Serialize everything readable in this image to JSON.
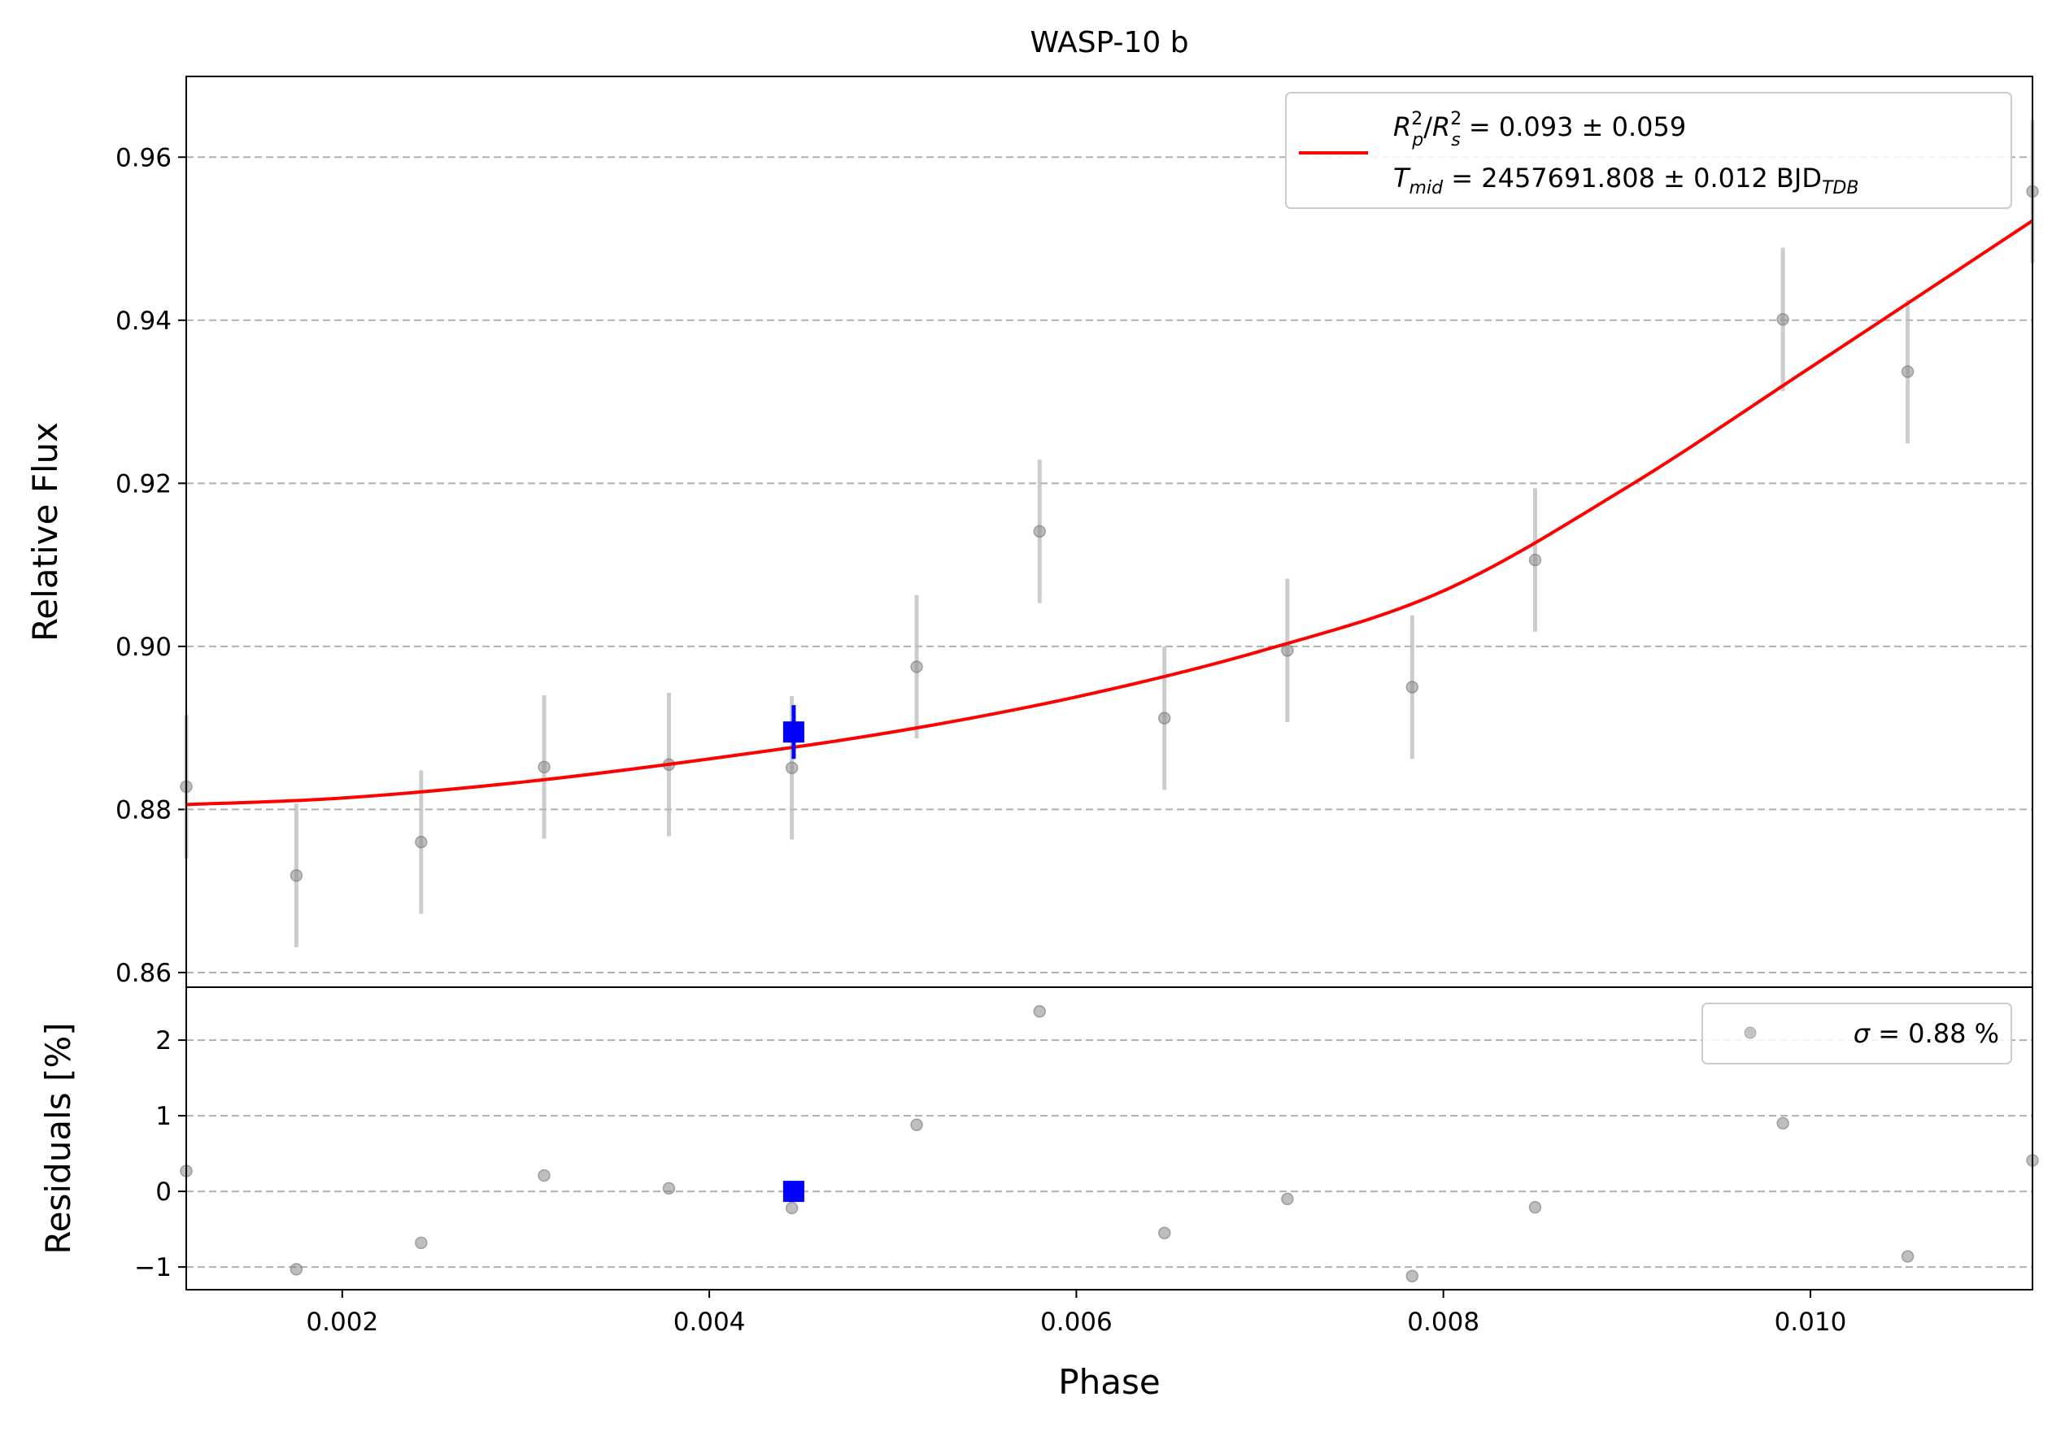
{
  "chart_data": [
    {
      "type": "scatter",
      "title": "WASP-10 b",
      "xlabel": "",
      "ylabel": "Relative Flux",
      "xlim": [
        0.00115,
        0.01121
      ],
      "ylim": [
        0.8582,
        0.9699
      ],
      "grid": "y-dashed",
      "yticks": [
        0.86,
        0.88,
        0.9,
        0.92,
        0.94,
        0.96
      ],
      "ytick_labels": [
        "0.86",
        "0.88",
        "0.90",
        "0.92",
        "0.94",
        "0.96"
      ],
      "series": [
        {
          "kind": "points-with-errorbars",
          "color": "#888888",
          "x": [
            0.00115,
            0.00175,
            0.00243,
            0.0031,
            0.00378,
            0.00445,
            0.00513,
            0.0058,
            0.00648,
            0.00715,
            0.00783,
            0.0085,
            0.00985,
            0.01053,
            0.01121
          ],
          "y": [
            0.8828,
            0.8719,
            0.876,
            0.8852,
            0.8855,
            0.8851,
            0.8975,
            0.9141,
            0.8912,
            0.8995,
            0.895,
            0.9106,
            0.9401,
            0.9337,
            0.9558
          ],
          "yerr": [
            0.0088,
            0.0088,
            0.0088,
            0.0088,
            0.0088,
            0.0088,
            0.0088,
            0.0088,
            0.0088,
            0.0088,
            0.0088,
            0.0088,
            0.0088,
            0.0088,
            0.0088
          ]
        },
        {
          "kind": "model-line",
          "color": "#ff0000",
          "legend": {
            "line1_a": "R",
            "line1_a_sup": "2",
            "line1_a_sub": "p",
            "line1_b": "R",
            "line1_b_sup": "2",
            "line1_b_sub": "s",
            "line1_value": " = 0.093 ± 0.059",
            "line2_a": "T",
            "line2_a_sub": "mid",
            "line2_value": " = 2457691.808 ± 0.012 BJD",
            "line2_sub": "TDB"
          },
          "x": [
            0.00115,
            0.002,
            0.003,
            0.004,
            0.005,
            0.006,
            0.007,
            0.008,
            0.009,
            0.01,
            0.01121
          ],
          "y": [
            0.8806,
            0.8814,
            0.8834,
            0.8862,
            0.8895,
            0.8938,
            0.8994,
            0.9068,
            0.9195,
            0.9342,
            0.9522
          ]
        },
        {
          "kind": "binned-point",
          "color": "#0000ff",
          "x": [
            0.00446
          ],
          "y": [
            0.8895
          ],
          "yerr": [
            0.0033
          ]
        }
      ]
    },
    {
      "type": "scatter",
      "xlabel": "Phase",
      "ylabel": "Residuals [%]",
      "xlim": [
        0.00115,
        0.01121
      ],
      "ylim": [
        -1.3,
        2.7
      ],
      "grid": "y-dashed",
      "yticks": [
        -1,
        0,
        1,
        2
      ],
      "ytick_labels": [
        "−1",
        "0",
        "1",
        "2"
      ],
      "xticks": [
        0.002,
        0.004,
        0.006,
        0.008,
        0.01
      ],
      "xtick_labels": [
        "0.002",
        "0.004",
        "0.006",
        "0.008",
        "0.010"
      ],
      "legend_label": " = 0.88 %",
      "legend_symbol": "σ",
      "series": [
        {
          "kind": "residual-points",
          "color": "#888888",
          "x": [
            0.00115,
            0.00175,
            0.00243,
            0.0031,
            0.00378,
            0.00445,
            0.00513,
            0.0058,
            0.00648,
            0.00715,
            0.00783,
            0.0085,
            0.00985,
            0.01053,
            0.01121
          ],
          "y": [
            0.27,
            -1.03,
            -0.68,
            0.21,
            0.04,
            -0.22,
            0.88,
            2.38,
            -0.55,
            -0.1,
            -1.12,
            -0.21,
            0.9,
            -0.86,
            0.41
          ]
        },
        {
          "kind": "binned-residual",
          "color": "#0000ff",
          "x": [
            0.00446
          ],
          "y": [
            0.0
          ]
        }
      ]
    }
  ]
}
